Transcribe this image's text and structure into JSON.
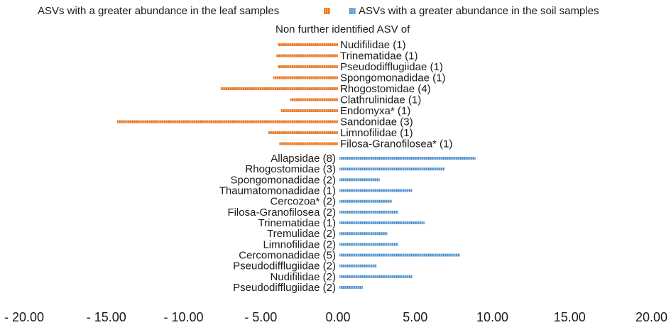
{
  "chart_data": {
    "type": "bar",
    "orientation": "horizontal",
    "title": "",
    "xlabel": "",
    "ylabel": "",
    "xlim": [
      -20,
      20
    ],
    "x_ticks": [
      "- 20.00",
      "- 15.00",
      "- 10.00",
      "- 5.00",
      "0.00",
      "5.00",
      "10.00",
      "15.00",
      "20.00"
    ],
    "x_tick_values": [
      -20,
      -15,
      -10,
      -5,
      0,
      5,
      10,
      15,
      20
    ],
    "legend": [
      {
        "label": "ASVs with a greater abundance in the leaf samples",
        "color": "#ED7D31"
      },
      {
        "label": "ASVs with a greater abundance in the soil samples",
        "color": "#5B9BD5"
      }
    ],
    "group_heading": "Non further identified ASV of",
    "series": [
      {
        "name": "ASVs with a greater abundance in the leaf samples",
        "color": "#ED7D31",
        "label_side": "right",
        "categories": [
          "Nudifilidae (1)",
          "Trinematidae (1)",
          "Pseudodifflugiidae (1)",
          "Spongomonadidae (1)",
          "Rhogostomidae (4)",
          "Clathrulinidae (1)",
          "Endomyxa* (1)",
          "Sandonidae (3)",
          "Limnofilidae (1)",
          "Filosa-Granofilosea* (1)"
        ],
        "values": [
          -3.9,
          -4.0,
          -3.9,
          -4.2,
          -7.6,
          -3.1,
          -3.7,
          -14.3,
          -4.5,
          -3.8
        ]
      },
      {
        "name": "ASVs with a greater abundance in the soil samples",
        "color": "#5B9BD5",
        "label_side": "left",
        "categories": [
          "Allapsidae (8)",
          "Rhogostomidae (3)",
          "Spongomonadidae (2)",
          "Thaumatomonadidae (1)",
          "Cercozoa* (2)",
          "Filosa-Granofilosea (2)",
          "Trinematidae (1)",
          "Tremulidae (2)",
          "Limnofilidae (2)",
          "Cercomonadidae (5)",
          "Pseudodifflugiidae (2)",
          "Nudifilidae (2)",
          "Pseudodifflugiidae (2)"
        ],
        "values": [
          8.9,
          6.9,
          2.7,
          4.8,
          3.5,
          3.9,
          5.6,
          3.2,
          3.9,
          7.9,
          2.5,
          4.8,
          1.6
        ]
      }
    ]
  }
}
